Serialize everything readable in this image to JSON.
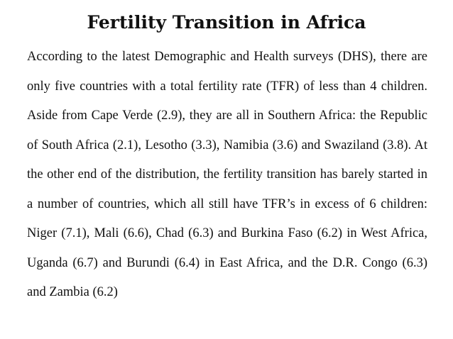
{
  "slide": {
    "title": "Fertility Transition in Africa",
    "body": "According to the latest Demographic and Health surveys (DHS), there are only five countries with a total fertility rate (TFR) of less than 4 children. Aside from Cape Verde (2.9), they are all in Southern Africa: the Republic of South Africa (2.1), Lesotho (3.3), Namibia (3.6) and Swaziland (3.8).  At the other end of the distribution, the fertility transition has barely started in a number of countries, which all still have TFR’s in excess of 6 children: Niger (7.1), Mali (6.6), Chad (6.3) and Burkina Faso (6.2) in West Africa, Uganda (6.7) and Burundi (6.4) in East Africa, and the D.R. Congo (6.3) and Zambia (6.2)"
  }
}
